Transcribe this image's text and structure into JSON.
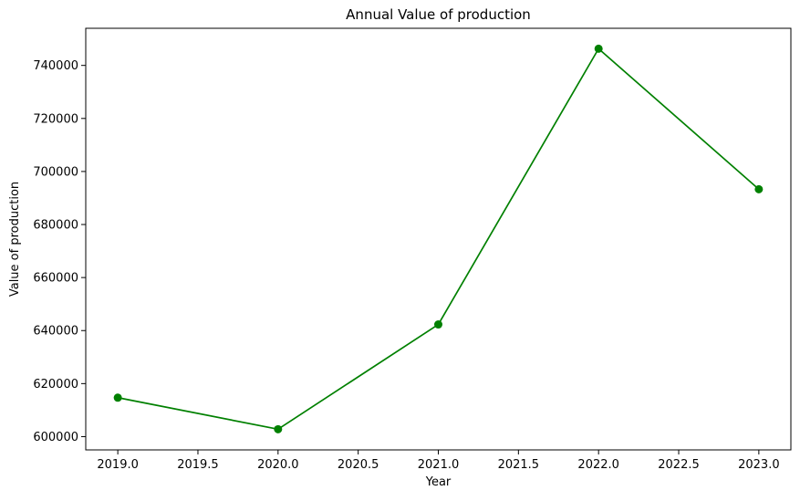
{
  "chart_data": {
    "type": "line",
    "title": "Annual Value of production",
    "xlabel": "Year",
    "ylabel": "Value of production",
    "xlim": [
      2018.8,
      2023.2
    ],
    "ylim": [
      595000,
      754000
    ],
    "xticks": [
      2019.0,
      2019.5,
      2020.0,
      2020.5,
      2021.0,
      2021.5,
      2022.0,
      2022.5,
      2023.0
    ],
    "xtick_labels": [
      "2019.0",
      "2019.5",
      "2020.0",
      "2020.5",
      "2021.0",
      "2021.5",
      "2022.0",
      "2022.5",
      "2023.0"
    ],
    "yticks": [
      600000,
      620000,
      640000,
      660000,
      680000,
      700000,
      720000,
      740000
    ],
    "ytick_labels": [
      "600000",
      "620000",
      "640000",
      "660000",
      "680000",
      "700000",
      "720000",
      "740000"
    ],
    "grid": false,
    "series": [
      {
        "color": "#008000",
        "marker": "circle",
        "x": [
          2019,
          2020,
          2021,
          2022,
          2023
        ],
        "y": [
          614700,
          602800,
          642300,
          746300,
          693300
        ]
      }
    ]
  }
}
